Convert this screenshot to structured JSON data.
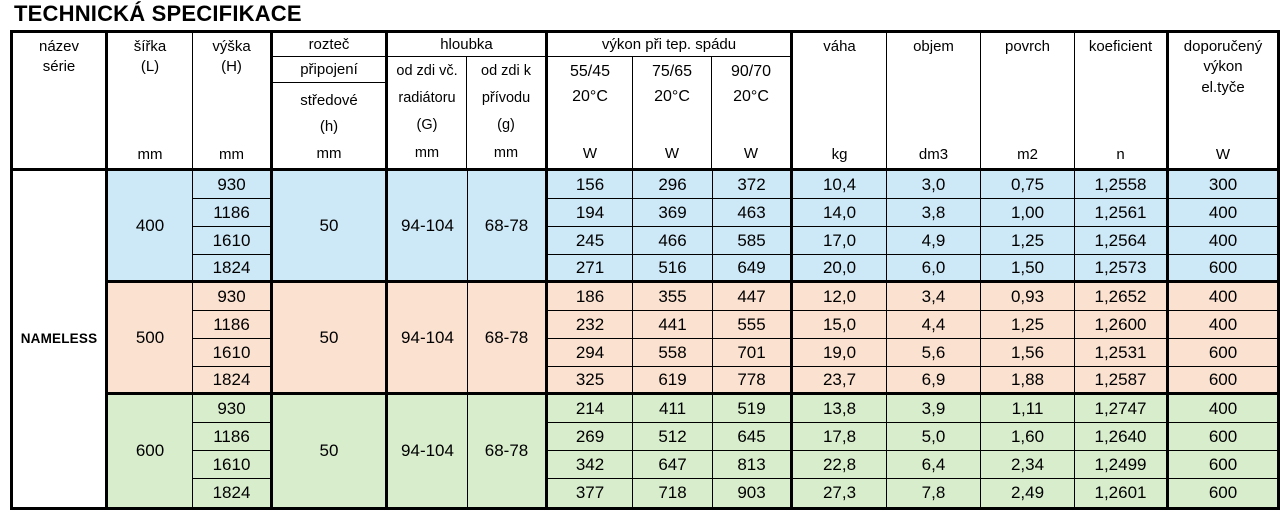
{
  "title": "TECHNICKÁ SPECIFIKACE",
  "series_name": "NAMELESS",
  "colors": {
    "blue": "#cde8f6",
    "pink": "#fbe1cf",
    "green": "#d8edcc",
    "border": "#000000",
    "background": "#ffffff"
  },
  "header": {
    "nazev": [
      "název",
      "série"
    ],
    "sirka": {
      "label": "šířka",
      "sub": "(L)",
      "unit": "mm"
    },
    "vyska": {
      "label": "výška",
      "sub": "(H)",
      "unit": "mm"
    },
    "roztec": {
      "label": "rozteč",
      "row2": "připojení",
      "lines": [
        "středové",
        "(h)",
        "mm"
      ]
    },
    "hloubka": {
      "label": "hloubka",
      "cols": [
        [
          "od zdi vč.",
          "radiátoru",
          "(G)",
          "mm"
        ],
        [
          "od zdi k",
          "přívodu",
          "(g)",
          "mm"
        ]
      ]
    },
    "vykon": {
      "label": "výkon při tep. spádu",
      "cols": [
        [
          "55/45",
          "20°C",
          "W"
        ],
        [
          "75/65",
          "20°C",
          "W"
        ],
        [
          "90/70",
          "20°C",
          "W"
        ]
      ]
    },
    "vaha": {
      "label": "váha",
      "unit": "kg"
    },
    "objem": {
      "label": "objem",
      "unit": "dm3"
    },
    "povrch": {
      "label": "povrch",
      "unit": "m2"
    },
    "koeficient": {
      "label": "koeficient",
      "unit": "n"
    },
    "doporuceny": {
      "label": [
        "doporučený",
        "výkon",
        "el.tyče"
      ],
      "unit": "W"
    }
  },
  "blocks": [
    {
      "color_key": "blue",
      "sirka": "400",
      "roztec": "50",
      "hloubka_g": "94-104",
      "hloubka_g2": "68-78",
      "rows": [
        [
          "930",
          "156",
          "296",
          "372",
          "10,4",
          "3,0",
          "0,75",
          "1,2558",
          "300"
        ],
        [
          "1186",
          "194",
          "369",
          "463",
          "14,0",
          "3,8",
          "1,00",
          "1,2561",
          "400"
        ],
        [
          "1610",
          "245",
          "466",
          "585",
          "17,0",
          "4,9",
          "1,25",
          "1,2564",
          "400"
        ],
        [
          "1824",
          "271",
          "516",
          "649",
          "20,0",
          "6,0",
          "1,50",
          "1,2573",
          "600"
        ]
      ]
    },
    {
      "color_key": "pink",
      "sirka": "500",
      "roztec": "50",
      "hloubka_g": "94-104",
      "hloubka_g2": "68-78",
      "rows": [
        [
          "930",
          "186",
          "355",
          "447",
          "12,0",
          "3,4",
          "0,93",
          "1,2652",
          "400"
        ],
        [
          "1186",
          "232",
          "441",
          "555",
          "15,0",
          "4,4",
          "1,25",
          "1,2600",
          "400"
        ],
        [
          "1610",
          "294",
          "558",
          "701",
          "19,0",
          "5,6",
          "1,56",
          "1,2531",
          "600"
        ],
        [
          "1824",
          "325",
          "619",
          "778",
          "23,7",
          "6,9",
          "1,88",
          "1,2587",
          "600"
        ]
      ]
    },
    {
      "color_key": "green",
      "sirka": "600",
      "roztec": "50",
      "hloubka_g": "94-104",
      "hloubka_g2": "68-78",
      "rows": [
        [
          "930",
          "214",
          "411",
          "519",
          "13,8",
          "3,9",
          "1,11",
          "1,2747",
          "400"
        ],
        [
          "1186",
          "269",
          "512",
          "645",
          "17,8",
          "5,0",
          "1,60",
          "1,2640",
          "600"
        ],
        [
          "1610",
          "342",
          "647",
          "813",
          "22,8",
          "6,4",
          "2,34",
          "1,2499",
          "600"
        ],
        [
          "1824",
          "377",
          "718",
          "903",
          "27,3",
          "7,8",
          "2,49",
          "1,2601",
          "600"
        ]
      ]
    }
  ]
}
